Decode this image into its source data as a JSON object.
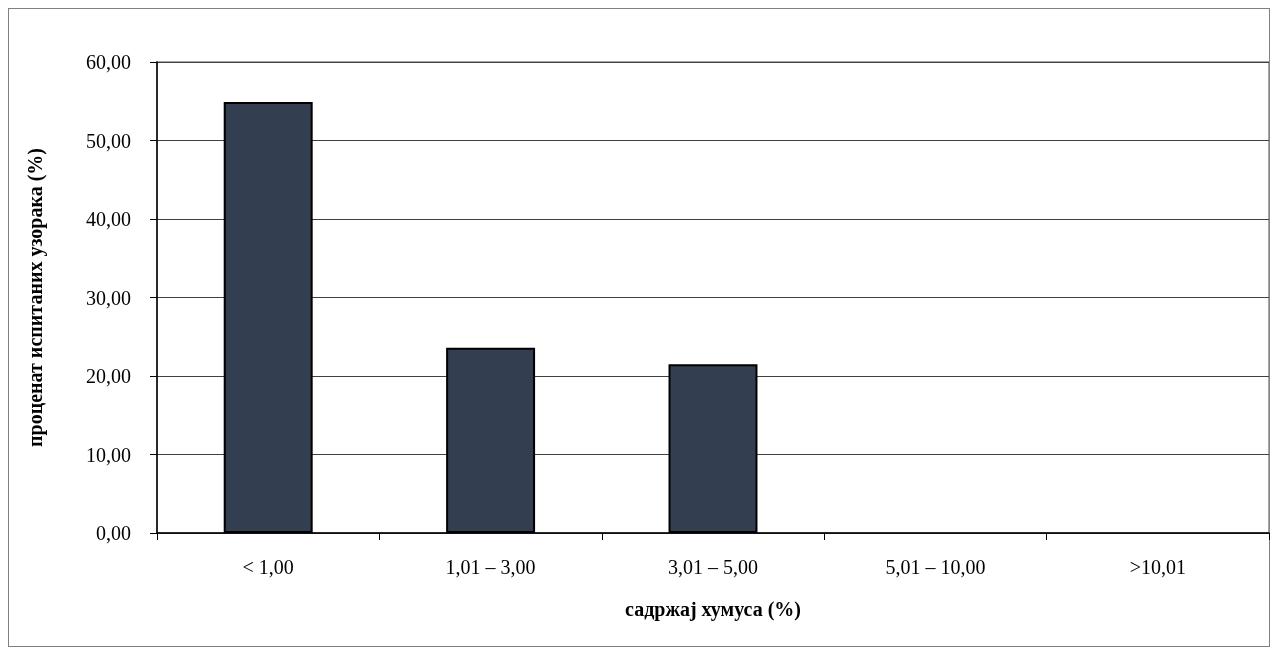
{
  "chart_data": {
    "type": "bar",
    "xlabel": "садржај хумуса (%)",
    "ylabel": "проценат испитаних узорака (%)",
    "categories": [
      "< 1,00",
      "1,01 – 3,00",
      "3,01 – 5,00",
      "5,01 – 10,00",
      ">10,01"
    ],
    "values": [
      54.9,
      23.6,
      21.5,
      0,
      0
    ],
    "color": "#333f50",
    "ylim": [
      0,
      60
    ],
    "yticks": [
      {
        "value": 0,
        "label": "0,00"
      },
      {
        "value": 10,
        "label": "10,00"
      },
      {
        "value": 20,
        "label": "20,00"
      },
      {
        "value": 30,
        "label": "30,00"
      },
      {
        "value": 40,
        "label": "40,00"
      },
      {
        "value": 50,
        "label": "50,00"
      },
      {
        "value": 60,
        "label": "60,00"
      }
    ],
    "grid": "y"
  }
}
